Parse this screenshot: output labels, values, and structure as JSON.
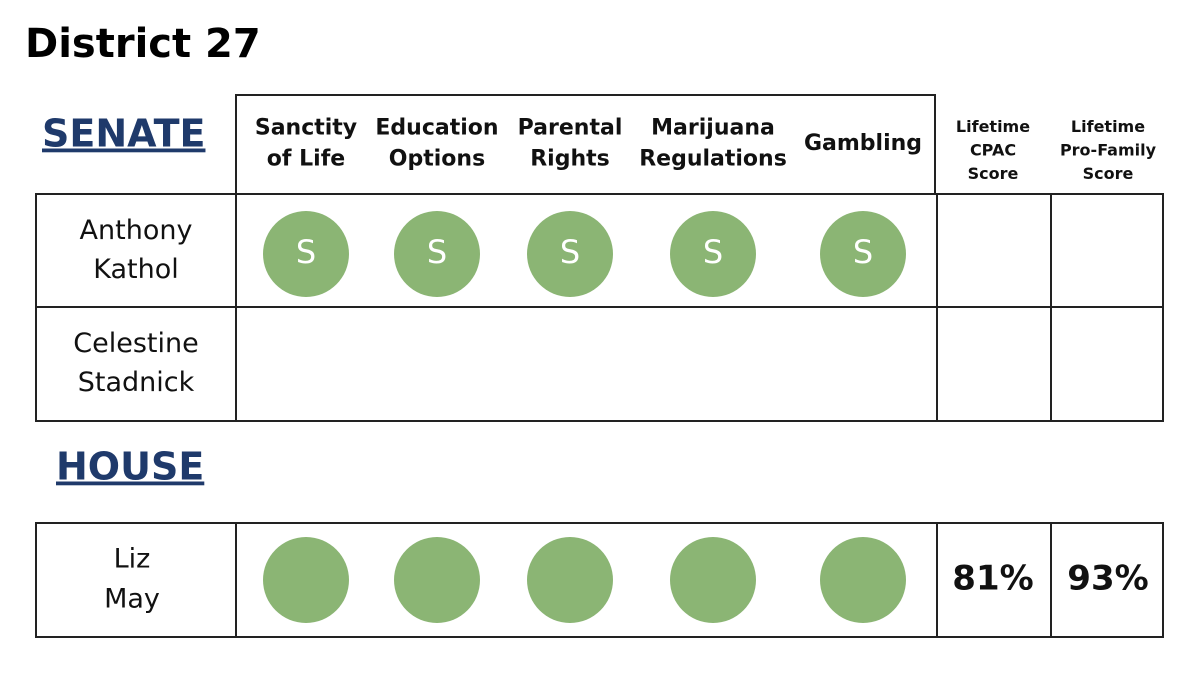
{
  "title": "District 27",
  "senate": {
    "heading": "SENATE",
    "columns": [
      [
        "Sanctity",
        "of Life"
      ],
      [
        "Education",
        "Options"
      ],
      [
        "Parental",
        "Rights"
      ],
      [
        "Marijuana",
        "Regulations"
      ],
      [
        "Gambling"
      ]
    ],
    "score_columns": [
      [
        "Lifetime",
        "CPAC",
        "Score"
      ],
      [
        "Lifetime",
        "Pro-Family",
        "Score"
      ]
    ],
    "rows": [
      {
        "name": [
          "Anthony",
          "Kathol"
        ],
        "marks": [
          "S",
          "S",
          "S",
          "S",
          "S"
        ]
      },
      {
        "name": [
          "Celestine",
          "Stadnick"
        ]
      }
    ]
  },
  "house": {
    "heading": "HOUSE",
    "rows": [
      {
        "name": [
          "Liz",
          "May"
        ],
        "scores": [
          "81%",
          "93%"
        ]
      }
    ]
  }
}
